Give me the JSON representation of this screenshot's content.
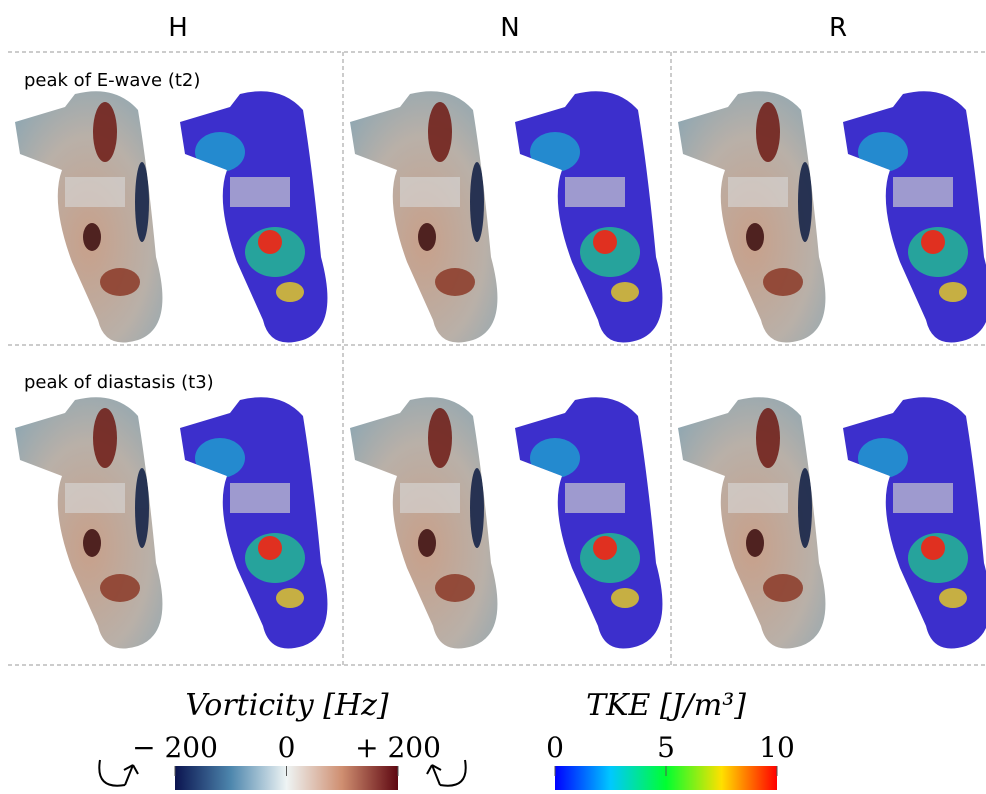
{
  "columns": [
    "H",
    "N",
    "R"
  ],
  "rows": [
    "peak of E-wave (t2)",
    "peak of diastasis (t3)"
  ],
  "colorbars": [
    {
      "title": "Vorticity [Hz]",
      "lim": [
        -200,
        200
      ],
      "ticks": [
        {
          "value": -200,
          "label": "− 200"
        },
        0,
        {
          "value": 200,
          "label": "+ 200"
        }
      ]
    },
    {
      "title": "TKE [J/m³]",
      "lim": [
        0,
        10
      ],
      "ticks": [
        0,
        5,
        10
      ]
    }
  ]
}
